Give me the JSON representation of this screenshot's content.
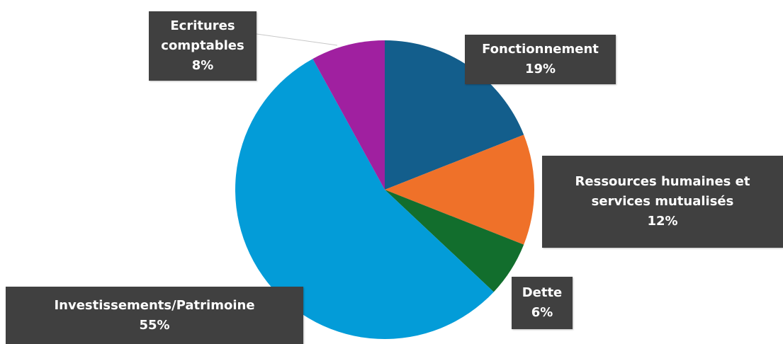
{
  "chart_data": {
    "type": "pie",
    "title": "",
    "slices": [
      {
        "label": "Fonctionnement",
        "value": 19,
        "display": "19%",
        "color": "#135E8C"
      },
      {
        "label": "Ressources humaines et services mutualisés",
        "value": 12,
        "display": "12%",
        "color": "#EF7129"
      },
      {
        "label": "Dette",
        "value": 6,
        "display": "6%",
        "color": "#126E2D"
      },
      {
        "label": "Investissements/Patrimoine",
        "value": 55,
        "display": "55%",
        "color": "#039CD8"
      },
      {
        "label": "Ecritures comptables",
        "value": 8,
        "display": "8%",
        "color": "#A020A0"
      }
    ],
    "label_lines": {
      "fonctionnement": "Fonctionnement",
      "rh_1": "Ressources humaines et",
      "rh_2": "services mutualisés",
      "dette": "Dette",
      "investissements": "Investissements/Patrimoine",
      "ecritures_1": "Ecritures",
      "ecritures_2": "comptables"
    },
    "legend": "none",
    "label_box_color": "#404040",
    "label_text_color": "#FFFFFF"
  }
}
